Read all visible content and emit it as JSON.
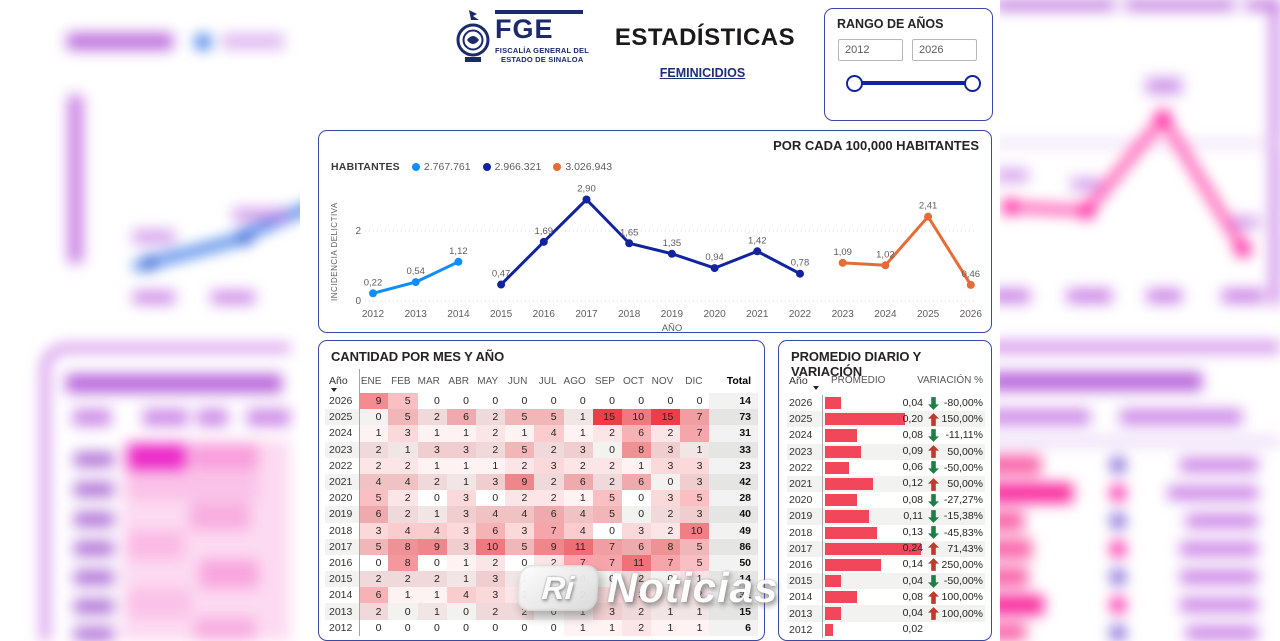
{
  "header": {
    "logo_acronym": "FGE",
    "logo_caption_line1": "FISCALÍA GENERAL DEL",
    "logo_caption_line2": "ESTADO DE SINALOA",
    "title": "ESTADÍSTICAS",
    "subtitle_link": "FEMINICIDIOS"
  },
  "range_panel": {
    "title": "RANGO DE AÑOS",
    "from": "2012",
    "to": "2026"
  },
  "chart_panel": {
    "title": "POR CADA 100,000 HABITANTES",
    "legend_title": "HABITANTES"
  },
  "chart_data": {
    "type": "line",
    "title": "POR CADA 100,000 HABITANTES",
    "xlabel": "AÑO",
    "ylabel": "INCIDENCIA DELICTIVA",
    "x": [
      2012,
      2013,
      2014,
      2015,
      2016,
      2017,
      2018,
      2019,
      2020,
      2021,
      2022,
      2023,
      2024,
      2025,
      2026
    ],
    "ylim": [
      0,
      3.2
    ],
    "yticks": [
      {
        "v": 0,
        "label": "0"
      },
      {
        "v": 2,
        "label": "2"
      }
    ],
    "grid": "dotted-horizontal",
    "legend_position": "top-left",
    "series": [
      {
        "name": "2.767.761",
        "color": "#118DFF",
        "start_year": 2012,
        "values": [
          0.22,
          0.54,
          1.12
        ],
        "labels": [
          "0,22",
          "0,54",
          "1,12"
        ]
      },
      {
        "name": "2.966.321",
        "color": "#12239E",
        "start_year": 2015,
        "values": [
          0.47,
          1.69,
          2.9,
          1.65,
          1.35,
          0.94,
          1.42,
          0.78
        ],
        "labels": [
          "0,47",
          "1,69",
          "2,90",
          "1,65",
          "1,35",
          "0,94",
          "1,42",
          "0,78"
        ]
      },
      {
        "name": "3.026.943",
        "color": "#E66C37",
        "start_year": 2023,
        "values": [
          1.09,
          1.02,
          2.41,
          0.46
        ],
        "labels": [
          "1,09",
          "1,02",
          "2,41",
          "0,46"
        ]
      }
    ]
  },
  "monthly_table": {
    "title": "CANTIDAD POR MES Y AÑO",
    "columns": [
      "Año",
      "ENE",
      "FEB",
      "MAR",
      "ABR",
      "MAY",
      "JUN",
      "JUL",
      "AGO",
      "SEP",
      "OCT",
      "NOV",
      "DIC",
      "Total"
    ],
    "heat_max": 15,
    "rows": [
      {
        "year": "2026",
        "values": [
          9,
          5,
          0,
          0,
          0,
          0,
          0,
          0,
          0,
          0,
          0,
          0
        ],
        "total": 14
      },
      {
        "year": "2025",
        "values": [
          0,
          5,
          2,
          6,
          2,
          5,
          5,
          1,
          15,
          10,
          15,
          7
        ],
        "total": 73
      },
      {
        "year": "2024",
        "values": [
          1,
          3,
          1,
          1,
          2,
          1,
          4,
          1,
          2,
          6,
          2,
          7
        ],
        "total": 31
      },
      {
        "year": "2023",
        "values": [
          2,
          1,
          3,
          3,
          2,
          5,
          2,
          3,
          0,
          8,
          3,
          1
        ],
        "total": 33
      },
      {
        "year": "2022",
        "values": [
          2,
          2,
          1,
          1,
          1,
          2,
          3,
          2,
          2,
          1,
          3,
          3
        ],
        "total": 23
      },
      {
        "year": "2021",
        "values": [
          4,
          4,
          2,
          1,
          3,
          9,
          2,
          6,
          2,
          6,
          0,
          3
        ],
        "total": 42
      },
      {
        "year": "2020",
        "values": [
          5,
          2,
          0,
          3,
          0,
          2,
          2,
          1,
          5,
          0,
          3,
          5
        ],
        "total": 28
      },
      {
        "year": "2019",
        "values": [
          6,
          2,
          1,
          3,
          4,
          4,
          6,
          4,
          5,
          0,
          2,
          3
        ],
        "total": 40
      },
      {
        "year": "2018",
        "values": [
          3,
          4,
          4,
          3,
          6,
          3,
          7,
          4,
          0,
          3,
          2,
          10
        ],
        "total": 49
      },
      {
        "year": "2017",
        "values": [
          5,
          8,
          9,
          3,
          10,
          5,
          9,
          11,
          7,
          6,
          8,
          5
        ],
        "total": 86
      },
      {
        "year": "2016",
        "values": [
          0,
          8,
          0,
          1,
          2,
          0,
          2,
          7,
          7,
          11,
          7,
          5
        ],
        "total": 50
      },
      {
        "year": "2015",
        "values": [
          2,
          2,
          2,
          1,
          3,
          1,
          0,
          0,
          0,
          2,
          0,
          1
        ],
        "total": 14
      },
      {
        "year": "2014",
        "values": [
          6,
          1,
          1,
          4,
          3,
          2,
          2,
          2,
          3,
          3,
          2,
          2
        ],
        "total": 31
      },
      {
        "year": "2013",
        "values": [
          2,
          0,
          1,
          0,
          2,
          2,
          0,
          1,
          3,
          2,
          1,
          1
        ],
        "total": 15
      },
      {
        "year": "2012",
        "values": [
          0,
          0,
          0,
          0,
          0,
          0,
          0,
          1,
          1,
          2,
          1,
          1
        ],
        "total": 6
      }
    ]
  },
  "daily_table": {
    "title": "PROMEDIO DIARIO Y VARIACIÓN",
    "columns": [
      "Año",
      "PROMEDIO",
      "VARIACIÓN %"
    ],
    "max_avg": 0.24,
    "rows": [
      {
        "year": "2026",
        "avg": "0,04",
        "avg_val": 0.04,
        "dir": "down",
        "var": "-80,00%"
      },
      {
        "year": "2025",
        "avg": "0,20",
        "avg_val": 0.2,
        "dir": "up",
        "var": "150,00%"
      },
      {
        "year": "2024",
        "avg": "0,08",
        "avg_val": 0.08,
        "dir": "down",
        "var": "-11,11%"
      },
      {
        "year": "2023",
        "avg": "0,09",
        "avg_val": 0.09,
        "dir": "up",
        "var": "50,00%"
      },
      {
        "year": "2022",
        "avg": "0,06",
        "avg_val": 0.06,
        "dir": "down",
        "var": "-50,00%"
      },
      {
        "year": "2021",
        "avg": "0,12",
        "avg_val": 0.12,
        "dir": "up",
        "var": "50,00%"
      },
      {
        "year": "2020",
        "avg": "0,08",
        "avg_val": 0.08,
        "dir": "down",
        "var": "-27,27%"
      },
      {
        "year": "2019",
        "avg": "0,11",
        "avg_val": 0.11,
        "dir": "down",
        "var": "-15,38%"
      },
      {
        "year": "2018",
        "avg": "0,13",
        "avg_val": 0.13,
        "dir": "down",
        "var": "-45,83%"
      },
      {
        "year": "2017",
        "avg": "0,24",
        "avg_val": 0.24,
        "dir": "up",
        "var": "71,43%"
      },
      {
        "year": "2016",
        "avg": "0,14",
        "avg_val": 0.14,
        "dir": "up",
        "var": "250,00%"
      },
      {
        "year": "2015",
        "avg": "0,04",
        "avg_val": 0.04,
        "dir": "down",
        "var": "-50,00%"
      },
      {
        "year": "2014",
        "avg": "0,08",
        "avg_val": 0.08,
        "dir": "up",
        "var": "100,00%"
      },
      {
        "year": "2013",
        "avg": "0,04",
        "avg_val": 0.04,
        "dir": "up",
        "var": "100,00%"
      },
      {
        "year": "2012",
        "avg": "0,02",
        "avg_val": 0.02,
        "dir": "none",
        "var": ""
      }
    ]
  },
  "colors": {
    "accent_navy": "#12239E",
    "light_blue": "#118DFF",
    "dark_blue": "#12239E",
    "orange": "#E66C37",
    "heat_max_rgb": [
      236,
      62,
      72
    ],
    "bar": "#F2475A",
    "up_arrow": "#C0392B",
    "down_arrow": "#1E7E45",
    "grid": "#d9d9d9",
    "axis_text": "#605e5c"
  },
  "watermark": {
    "badge": "Ri",
    "text": "Noticias"
  }
}
